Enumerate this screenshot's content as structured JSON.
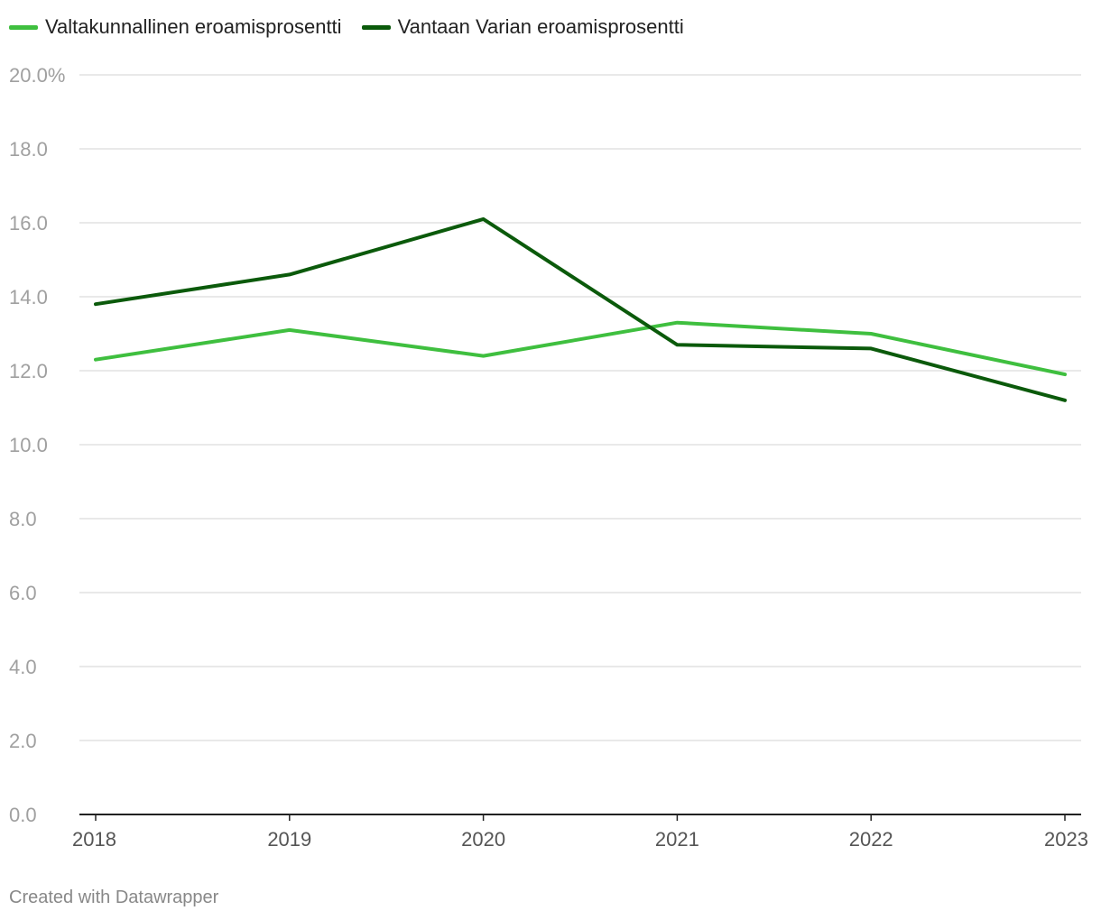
{
  "chart_data": {
    "type": "line",
    "title": "",
    "xlabel": "",
    "ylabel": "",
    "x": [
      "2018",
      "2019",
      "2020",
      "2021",
      "2022",
      "2023"
    ],
    "ylim": [
      0,
      20
    ],
    "yticks": [
      "0.0",
      "2.0",
      "4.0",
      "6.0",
      "8.0",
      "10.0",
      "12.0",
      "14.0",
      "16.0",
      "18.0",
      "20.0%"
    ],
    "legend_position": "top-left",
    "grid": true,
    "series": [
      {
        "name": "Valtakunnallinen eroamisprosentti",
        "color": "#3fbf3f",
        "values": [
          12.3,
          13.1,
          12.4,
          13.3,
          13.0,
          11.9
        ]
      },
      {
        "name": "Vantaan Varian eroamisprosentti",
        "color": "#0b5a0b",
        "values": [
          13.8,
          14.6,
          16.1,
          12.7,
          12.6,
          11.2
        ]
      }
    ]
  },
  "footer": {
    "credit": "Created with Datawrapper"
  }
}
